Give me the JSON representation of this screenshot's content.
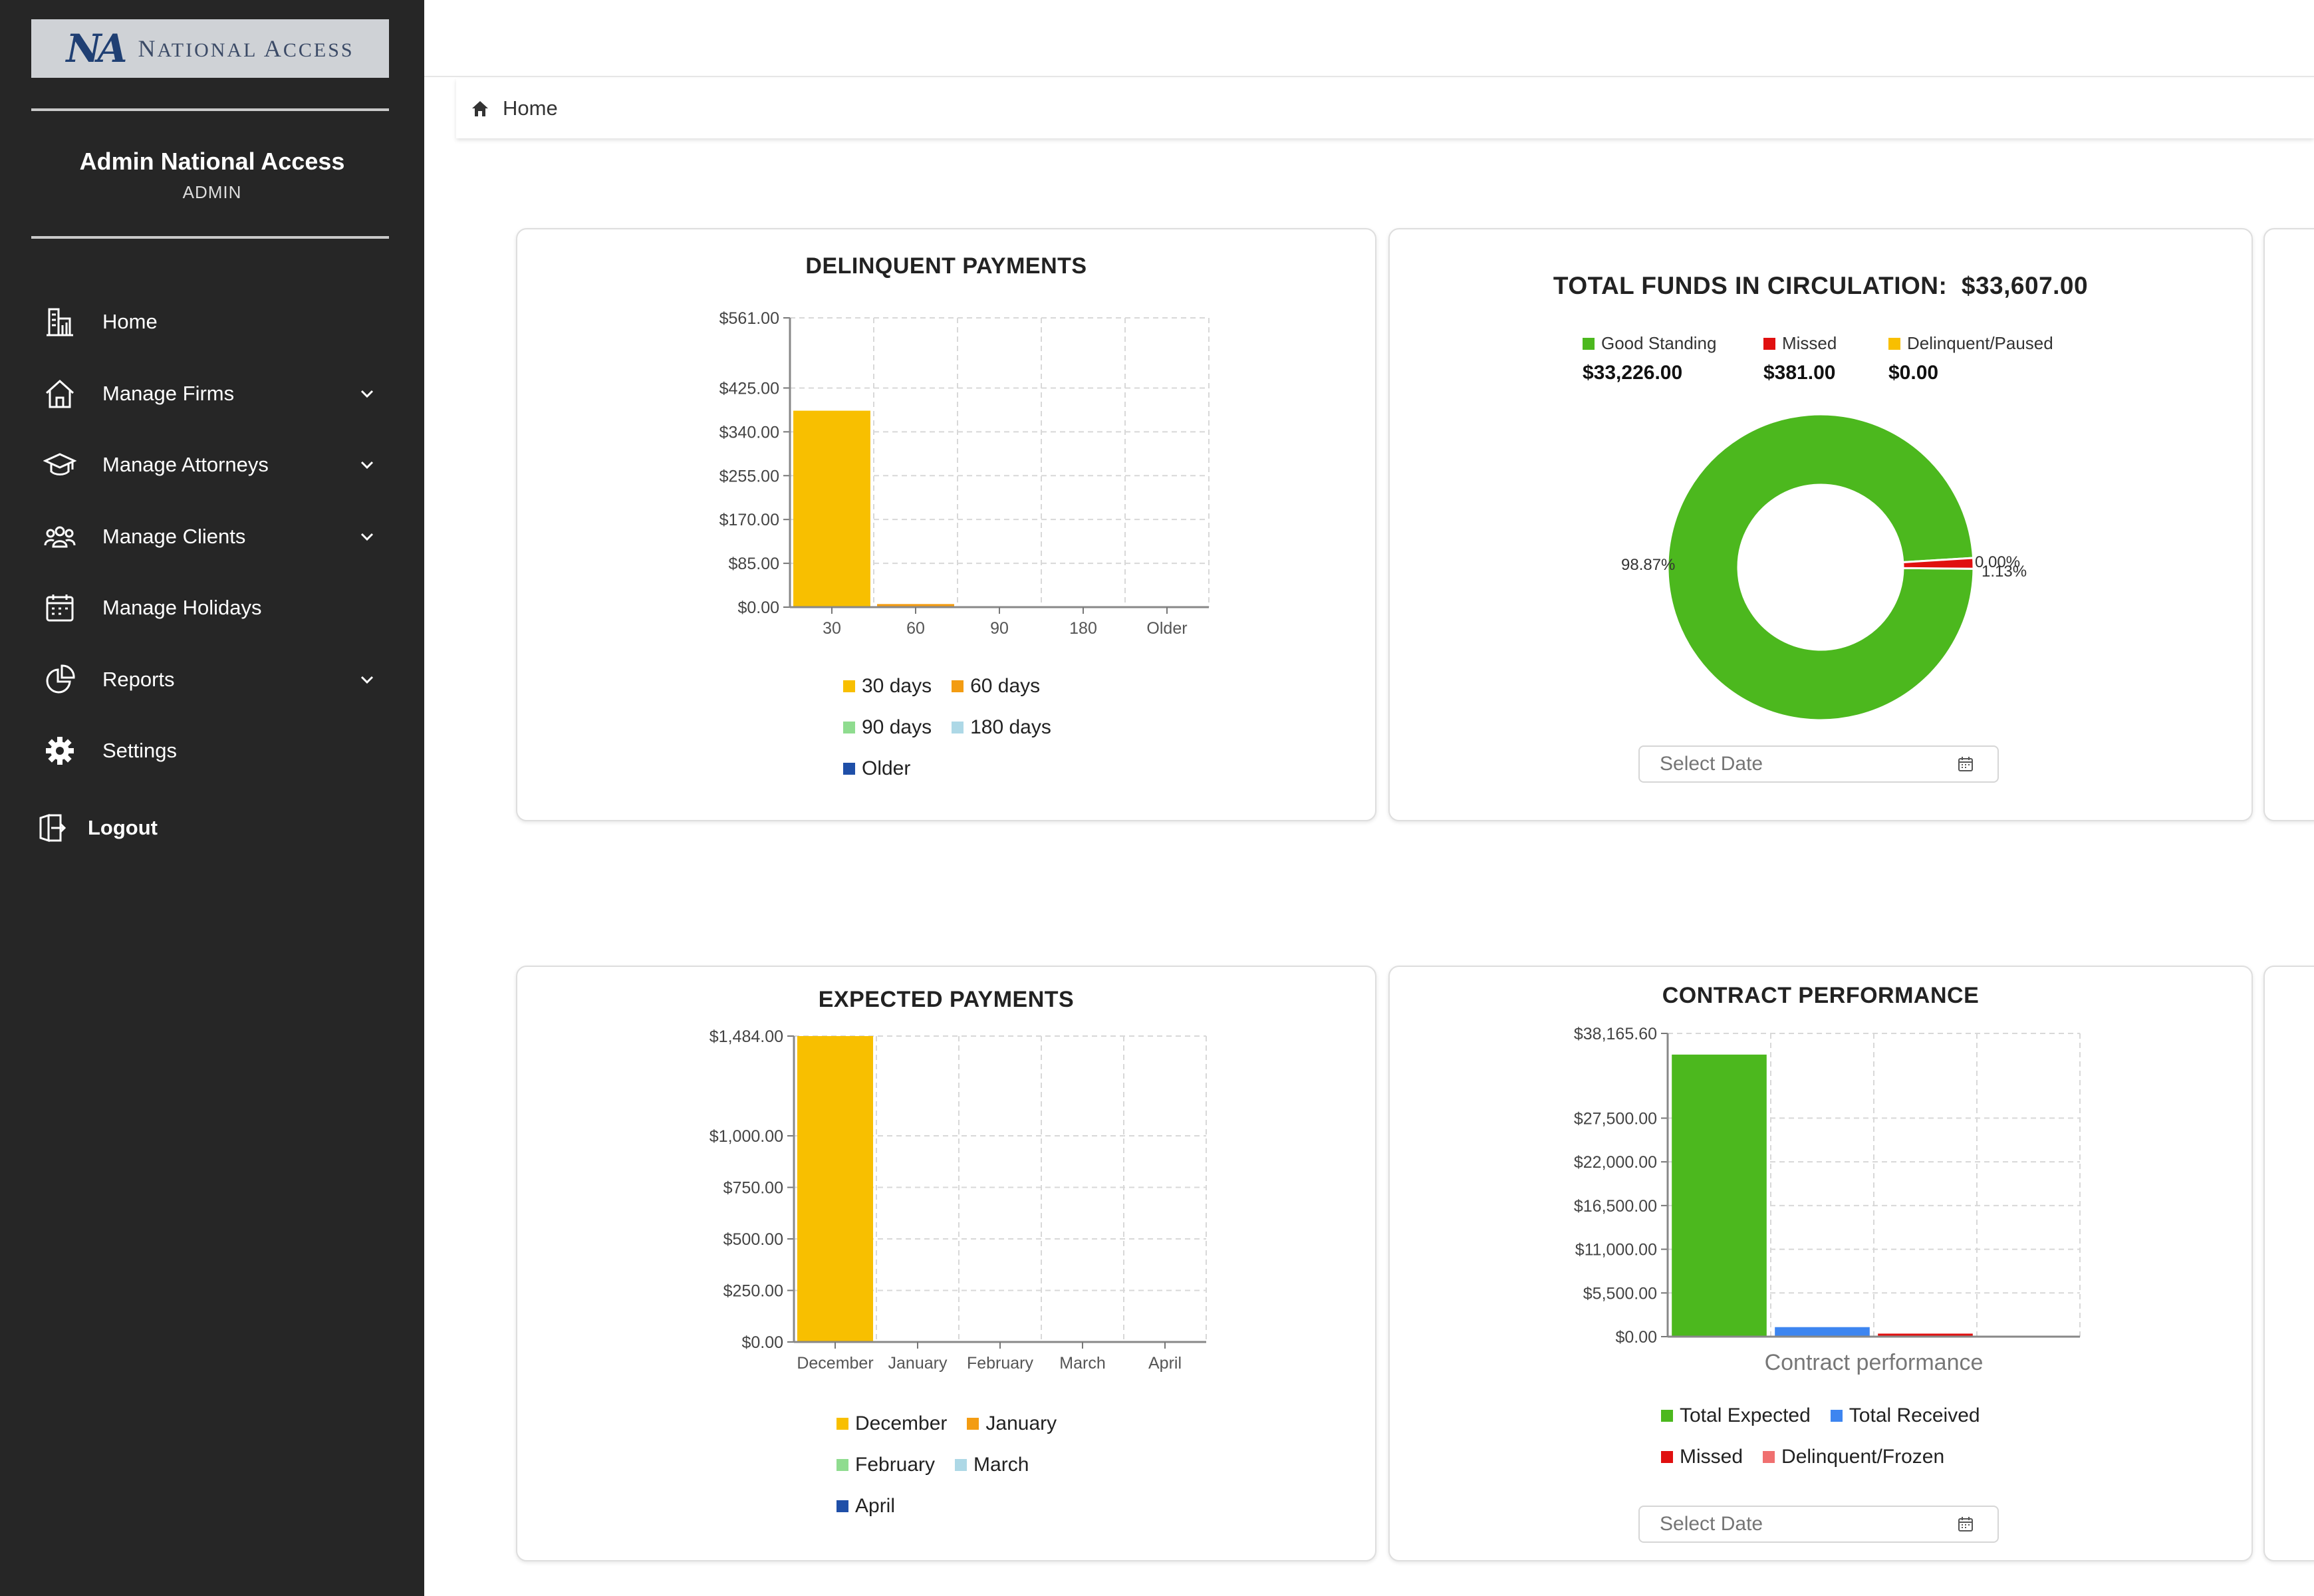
{
  "brand": {
    "mark": "NA",
    "name_big1": "N",
    "name_small1": "ATIONAL ",
    "name_big2": "A",
    "name_small2": "CCESS"
  },
  "user": {
    "name": "Admin  National Access",
    "role": "ADMIN"
  },
  "nav": [
    {
      "label": "Home",
      "icon": "building-chart-icon",
      "expandable": false
    },
    {
      "label": "Manage Firms",
      "icon": "house-icon",
      "expandable": true
    },
    {
      "label": "Manage Attorneys",
      "icon": "graduation-cap-icon",
      "expandable": true
    },
    {
      "label": "Manage Clients",
      "icon": "users-icon",
      "expandable": true
    },
    {
      "label": "Manage Holidays",
      "icon": "calendar-icon",
      "expandable": false
    },
    {
      "label": "Reports",
      "icon": "pie-chart-icon",
      "expandable": true
    },
    {
      "label": "Settings",
      "icon": "gear-icon",
      "expandable": false
    }
  ],
  "logout_label": "Logout",
  "breadcrumb": {
    "home": "Home"
  },
  "date_placeholder": "Select Date",
  "colors": {
    "yellow": "#f8bf00",
    "orange": "#f39c12",
    "lightgreen": "#8fdc8f",
    "lightblue": "#add8e6",
    "darkblue": "#1f4fa8",
    "green": "#4cb81e",
    "red": "#e01010",
    "blue": "#3d85f0",
    "salmon": "#f07070"
  },
  "delinquent": {
    "title": "DELINQUENT PAYMENTS",
    "chart_data": {
      "type": "bar",
      "categories": [
        "30",
        "60",
        "90",
        "180",
        "Older"
      ],
      "values": [
        381,
        6,
        0,
        0,
        0
      ],
      "ylim": [
        0,
        561
      ],
      "yticks": [
        "$0.00",
        "$85.00",
        "$170.00",
        "$255.00",
        "$340.00",
        "$425.00",
        "$561.00"
      ],
      "ytick_values": [
        0,
        85,
        170,
        255,
        340,
        425,
        561
      ],
      "legend": [
        "30 days",
        "60 days",
        "90 days",
        "180 days",
        "Older"
      ]
    }
  },
  "funds": {
    "title_label": "TOTAL FUNDS IN CIRCULATION:",
    "title_value": "$33,607.00",
    "statuses": [
      {
        "label": "Good Standing",
        "value": "$33,226.00",
        "color": "#4cb81e"
      },
      {
        "label": "Missed",
        "value": "$381.00",
        "color": "#e01010"
      },
      {
        "label": "Delinquent/Paused",
        "value": "$0.00",
        "color": "#f8bf00"
      }
    ],
    "chart_data": {
      "type": "pie",
      "labels": [
        "Good Standing",
        "Missed",
        "Delinquent/Paused"
      ],
      "values": [
        98.87,
        1.13,
        0.0
      ],
      "slice_labels": [
        "98.87%",
        "1.13%",
        "0.00%"
      ]
    }
  },
  "expected": {
    "title": "EXPECTED PAYMENTS",
    "chart_data": {
      "type": "bar",
      "categories": [
        "December",
        "January",
        "February",
        "March",
        "April"
      ],
      "values": [
        1484,
        0,
        0,
        0,
        0
      ],
      "ylim": [
        0,
        1484
      ],
      "yticks": [
        "$0.00",
        "$250.00",
        "$500.00",
        "$750.00",
        "$1,000.00",
        "$1,484.00"
      ],
      "ytick_values": [
        0,
        250,
        500,
        750,
        1000,
        1484
      ],
      "legend": [
        "December",
        "January",
        "February",
        "March",
        "April"
      ]
    }
  },
  "contract": {
    "title": "CONTRACT PERFORMANCE",
    "chart_data": {
      "type": "bar",
      "categories": [
        "Total Expected",
        "Total Received",
        "Missed",
        "Delinquent/Frozen"
      ],
      "values": [
        35500,
        1200,
        381,
        0
      ],
      "ylim": [
        0,
        38165.6
      ],
      "yticks": [
        "$0.00",
        "$5,500.00",
        "$11,000.00",
        "$16,500.00",
        "$22,000.00",
        "$27,500.00",
        "$38,165.60"
      ],
      "ytick_values": [
        0,
        5500,
        11000,
        16500,
        22000,
        27500,
        38165.6
      ],
      "xlabel": "Contract performance",
      "legend": [
        "Total Expected",
        "Total Received",
        "Missed",
        "Delinquent/Frozen"
      ]
    }
  }
}
